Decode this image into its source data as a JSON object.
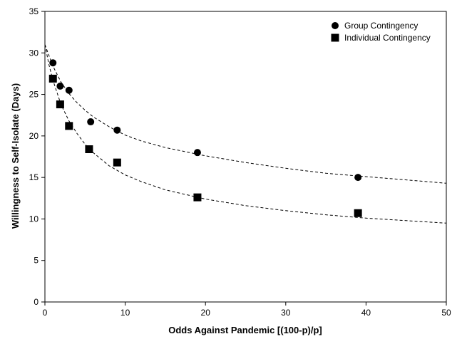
{
  "chart_data": {
    "type": "scatter",
    "title": "",
    "xlabel": "Odds Against Pandemic [(100-p)/p]",
    "ylabel": "Willingness to Self-Isolate (Days)",
    "xlim": [
      0,
      50
    ],
    "ylim": [
      0,
      35
    ],
    "x_ticks": [
      0,
      10,
      20,
      30,
      40,
      50
    ],
    "y_ticks": [
      0,
      5,
      10,
      15,
      20,
      25,
      30,
      35
    ],
    "grid": false,
    "legend_position": "top-right",
    "series": [
      {
        "name": "Group Contingency",
        "marker": "circle",
        "color": "#000000",
        "points": [
          {
            "x": 1,
            "y": 28.8
          },
          {
            "x": 1.9,
            "y": 26.0
          },
          {
            "x": 3,
            "y": 25.5
          },
          {
            "x": 5.7,
            "y": 21.7
          },
          {
            "x": 9,
            "y": 20.7
          },
          {
            "x": 19,
            "y": 18.0
          },
          {
            "x": 39,
            "y": 15.0
          }
        ],
        "fit": {
          "style": "dashed",
          "points": [
            {
              "x": 0,
              "y": 31.0
            },
            {
              "x": 0.5,
              "y": 29.7
            },
            {
              "x": 1,
              "y": 28.4
            },
            {
              "x": 2,
              "y": 26.5
            },
            {
              "x": 3,
              "y": 25.1
            },
            {
              "x": 4,
              "y": 24.0
            },
            {
              "x": 5,
              "y": 23.1
            },
            {
              "x": 6,
              "y": 22.3
            },
            {
              "x": 8,
              "y": 21.1
            },
            {
              "x": 10,
              "y": 20.1
            },
            {
              "x": 12,
              "y": 19.4
            },
            {
              "x": 15,
              "y": 18.6
            },
            {
              "x": 20,
              "y": 17.6
            },
            {
              "x": 25,
              "y": 16.8
            },
            {
              "x": 30,
              "y": 16.1
            },
            {
              "x": 35,
              "y": 15.5
            },
            {
              "x": 40,
              "y": 15.1
            },
            {
              "x": 45,
              "y": 14.7
            },
            {
              "x": 50,
              "y": 14.3
            }
          ]
        }
      },
      {
        "name": "Individual Contingency",
        "marker": "square",
        "color": "#000000",
        "points": [
          {
            "x": 1,
            "y": 26.9
          },
          {
            "x": 1.9,
            "y": 23.8
          },
          {
            "x": 3,
            "y": 21.2
          },
          {
            "x": 5.5,
            "y": 18.4
          },
          {
            "x": 9,
            "y": 16.8
          },
          {
            "x": 19,
            "y": 12.6
          },
          {
            "x": 39,
            "y": 10.7
          }
        ],
        "fit": {
          "style": "dashed",
          "points": [
            {
              "x": 0,
              "y": 31.0
            },
            {
              "x": 0.5,
              "y": 28.6
            },
            {
              "x": 1,
              "y": 26.7
            },
            {
              "x": 2,
              "y": 23.8
            },
            {
              "x": 3,
              "y": 21.8
            },
            {
              "x": 4,
              "y": 20.3
            },
            {
              "x": 5,
              "y": 19.0
            },
            {
              "x": 6,
              "y": 18.0
            },
            {
              "x": 8,
              "y": 16.4
            },
            {
              "x": 10,
              "y": 15.3
            },
            {
              "x": 12,
              "y": 14.5
            },
            {
              "x": 15,
              "y": 13.5
            },
            {
              "x": 20,
              "y": 12.4
            },
            {
              "x": 25,
              "y": 11.6
            },
            {
              "x": 30,
              "y": 11.0
            },
            {
              "x": 35,
              "y": 10.5
            },
            {
              "x": 40,
              "y": 10.1
            },
            {
              "x": 45,
              "y": 9.8
            },
            {
              "x": 50,
              "y": 9.5
            }
          ]
        }
      }
    ]
  }
}
